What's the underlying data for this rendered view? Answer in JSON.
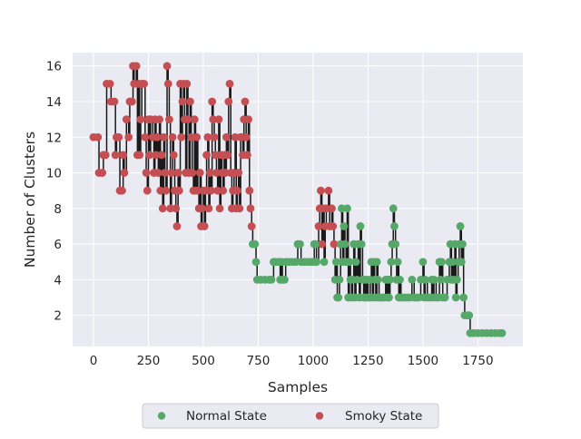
{
  "chart_data": {
    "type": "scatter",
    "xlabel": "Samples",
    "ylabel": "Number of Clusters",
    "xlim": [
      -95,
      1955
    ],
    "ylim": [
      0.25,
      16.75
    ],
    "xticks": [
      0,
      250,
      500,
      750,
      1000,
      1250,
      1500,
      1750
    ],
    "xtick_labels": [
      "0",
      "250",
      "500",
      "750",
      "1000",
      "1250",
      "1500",
      "1750"
    ],
    "yticks": [
      2,
      4,
      6,
      8,
      10,
      12,
      14,
      16
    ],
    "ytick_labels": [
      "2",
      "4",
      "6",
      "8",
      "10",
      "12",
      "14",
      "16"
    ],
    "grid": true,
    "legend_position": "bottom-center",
    "line": {
      "color": "#1a1a1a",
      "description": "step line through all samples"
    },
    "series": [
      {
        "name": "Smoky State",
        "color": "#c44e52",
        "points": [
          [
            0,
            12
          ],
          [
            20,
            12
          ],
          [
            25,
            10
          ],
          [
            40,
            10
          ],
          [
            45,
            11
          ],
          [
            55,
            11
          ],
          [
            60,
            15
          ],
          [
            75,
            15
          ],
          [
            80,
            14
          ],
          [
            95,
            14
          ],
          [
            100,
            11
          ],
          [
            105,
            12
          ],
          [
            115,
            12
          ],
          [
            120,
            9
          ],
          [
            130,
            9
          ],
          [
            135,
            11
          ],
          [
            140,
            10
          ],
          [
            150,
            13
          ],
          [
            160,
            12
          ],
          [
            165,
            14
          ],
          [
            175,
            14
          ],
          [
            180,
            16
          ],
          [
            185,
            15
          ],
          [
            195,
            16
          ],
          [
            200,
            11
          ],
          [
            205,
            15
          ],
          [
            210,
            11
          ],
          [
            215,
            13
          ],
          [
            220,
            15
          ],
          [
            230,
            15
          ],
          [
            235,
            12
          ],
          [
            240,
            10
          ],
          [
            245,
            9
          ],
          [
            250,
            13
          ],
          [
            255,
            11
          ],
          [
            260,
            13
          ],
          [
            270,
            12
          ],
          [
            275,
            10
          ],
          [
            280,
            13
          ],
          [
            285,
            11
          ],
          [
            290,
            12
          ],
          [
            295,
            10
          ],
          [
            300,
            13
          ],
          [
            305,
            9
          ],
          [
            310,
            11
          ],
          [
            315,
            8
          ],
          [
            320,
            12
          ],
          [
            325,
            10
          ],
          [
            330,
            9
          ],
          [
            335,
            16
          ],
          [
            340,
            15
          ],
          [
            345,
            13
          ],
          [
            350,
            8
          ],
          [
            355,
            10
          ],
          [
            360,
            12
          ],
          [
            365,
            11
          ],
          [
            370,
            9
          ],
          [
            375,
            8
          ],
          [
            380,
            7
          ],
          [
            385,
            10
          ],
          [
            390,
            9
          ],
          [
            395,
            15
          ],
          [
            400,
            12
          ],
          [
            405,
            14
          ],
          [
            410,
            15
          ],
          [
            415,
            13
          ],
          [
            420,
            10
          ],
          [
            425,
            15
          ],
          [
            430,
            13
          ],
          [
            435,
            10
          ],
          [
            440,
            14
          ],
          [
            445,
            12
          ],
          [
            450,
            10
          ],
          [
            455,
            9
          ],
          [
            460,
            13
          ],
          [
            465,
            9
          ],
          [
            470,
            12
          ],
          [
            475,
            9
          ],
          [
            480,
            8
          ],
          [
            485,
            10
          ],
          [
            490,
            7
          ],
          [
            495,
            8
          ],
          [
            500,
            9
          ],
          [
            505,
            7
          ],
          [
            510,
            9
          ],
          [
            515,
            11
          ],
          [
            520,
            12
          ],
          [
            525,
            8
          ],
          [
            530,
            10
          ],
          [
            535,
            9
          ],
          [
            540,
            14
          ],
          [
            545,
            13
          ],
          [
            550,
            12
          ],
          [
            555,
            11
          ],
          [
            560,
            10
          ],
          [
            565,
            9
          ],
          [
            570,
            13
          ],
          [
            575,
            8
          ],
          [
            580,
            11
          ],
          [
            585,
            10
          ],
          [
            590,
            9
          ],
          [
            595,
            11
          ],
          [
            600,
            10
          ],
          [
            605,
            12
          ],
          [
            610,
            11
          ],
          [
            615,
            14
          ],
          [
            620,
            15
          ],
          [
            625,
            10
          ],
          [
            630,
            8
          ],
          [
            635,
            9
          ],
          [
            640,
            10
          ],
          [
            645,
            12
          ],
          [
            650,
            8
          ],
          [
            655,
            9
          ],
          [
            660,
            10
          ],
          [
            665,
            8
          ],
          [
            670,
            12
          ],
          [
            675,
            12
          ],
          [
            680,
            11
          ],
          [
            685,
            13
          ],
          [
            690,
            14
          ],
          [
            695,
            12
          ],
          [
            700,
            11
          ],
          [
            705,
            13
          ],
          [
            710,
            9
          ],
          [
            715,
            8
          ],
          [
            720,
            7
          ],
          [
            1025,
            7
          ],
          [
            1030,
            8
          ],
          [
            1035,
            9
          ],
          [
            1040,
            6
          ],
          [
            1045,
            8
          ],
          [
            1055,
            7
          ],
          [
            1060,
            8
          ],
          [
            1070,
            9
          ],
          [
            1075,
            7
          ],
          [
            1085,
            8
          ],
          [
            1090,
            7
          ],
          [
            1095,
            6
          ]
        ]
      },
      {
        "name": "Normal State",
        "color": "#55a868",
        "points": [
          [
            725,
            6
          ],
          [
            735,
            6
          ],
          [
            740,
            5
          ],
          [
            745,
            4
          ],
          [
            760,
            4
          ],
          [
            780,
            4
          ],
          [
            800,
            4
          ],
          [
            810,
            4
          ],
          [
            820,
            5
          ],
          [
            830,
            5
          ],
          [
            845,
            5
          ],
          [
            850,
            4
          ],
          [
            855,
            5
          ],
          [
            860,
            4
          ],
          [
            870,
            4
          ],
          [
            875,
            5
          ],
          [
            890,
            5
          ],
          [
            905,
            5
          ],
          [
            920,
            5
          ],
          [
            930,
            6
          ],
          [
            940,
            6
          ],
          [
            945,
            5
          ],
          [
            960,
            5
          ],
          [
            975,
            5
          ],
          [
            990,
            5
          ],
          [
            1000,
            5
          ],
          [
            1005,
            6
          ],
          [
            1010,
            6
          ],
          [
            1015,
            5
          ],
          [
            1050,
            5
          ],
          [
            1100,
            4
          ],
          [
            1105,
            5
          ],
          [
            1110,
            3
          ],
          [
            1115,
            3
          ],
          [
            1120,
            4
          ],
          [
            1125,
            6
          ],
          [
            1130,
            8
          ],
          [
            1135,
            5
          ],
          [
            1140,
            7
          ],
          [
            1145,
            6
          ],
          [
            1150,
            5
          ],
          [
            1155,
            8
          ],
          [
            1160,
            3
          ],
          [
            1165,
            5
          ],
          [
            1170,
            4
          ],
          [
            1175,
            3
          ],
          [
            1180,
            4
          ],
          [
            1185,
            6
          ],
          [
            1190,
            3
          ],
          [
            1195,
            5
          ],
          [
            1200,
            4
          ],
          [
            1205,
            6
          ],
          [
            1210,
            3
          ],
          [
            1215,
            7
          ],
          [
            1220,
            6
          ],
          [
            1225,
            4
          ],
          [
            1230,
            3
          ],
          [
            1235,
            4
          ],
          [
            1240,
            3
          ],
          [
            1245,
            4
          ],
          [
            1250,
            3
          ],
          [
            1255,
            3
          ],
          [
            1260,
            4
          ],
          [
            1265,
            5
          ],
          [
            1270,
            3
          ],
          [
            1275,
            5
          ],
          [
            1280,
            4
          ],
          [
            1285,
            3
          ],
          [
            1290,
            5
          ],
          [
            1295,
            4
          ],
          [
            1300,
            3
          ],
          [
            1305,
            3
          ],
          [
            1310,
            3
          ],
          [
            1320,
            3
          ],
          [
            1330,
            4
          ],
          [
            1335,
            3
          ],
          [
            1340,
            4
          ],
          [
            1345,
            3
          ],
          [
            1350,
            4
          ],
          [
            1355,
            5
          ],
          [
            1360,
            6
          ],
          [
            1365,
            8
          ],
          [
            1370,
            7
          ],
          [
            1375,
            6
          ],
          [
            1380,
            4
          ],
          [
            1385,
            5
          ],
          [
            1390,
            3
          ],
          [
            1395,
            4
          ],
          [
            1400,
            3
          ],
          [
            1410,
            3
          ],
          [
            1420,
            3
          ],
          [
            1430,
            3
          ],
          [
            1440,
            3
          ],
          [
            1450,
            4
          ],
          [
            1460,
            3
          ],
          [
            1470,
            3
          ],
          [
            1480,
            3
          ],
          [
            1490,
            4
          ],
          [
            1500,
            5
          ],
          [
            1505,
            3
          ],
          [
            1510,
            4
          ],
          [
            1520,
            3
          ],
          [
            1530,
            3
          ],
          [
            1540,
            4
          ],
          [
            1545,
            3
          ],
          [
            1550,
            4
          ],
          [
            1560,
            3
          ],
          [
            1570,
            3
          ],
          [
            1575,
            5
          ],
          [
            1580,
            4
          ],
          [
            1585,
            5
          ],
          [
            1590,
            3
          ],
          [
            1600,
            3
          ],
          [
            1610,
            4
          ],
          [
            1620,
            5
          ],
          [
            1625,
            6
          ],
          [
            1630,
            4
          ],
          [
            1635,
            5
          ],
          [
            1640,
            4
          ],
          [
            1645,
            6
          ],
          [
            1650,
            3
          ],
          [
            1655,
            4
          ],
          [
            1660,
            5
          ],
          [
            1665,
            6
          ],
          [
            1670,
            7
          ],
          [
            1675,
            5
          ],
          [
            1680,
            6
          ],
          [
            1685,
            3
          ],
          [
            1690,
            2
          ],
          [
            1700,
            2
          ],
          [
            1710,
            2
          ],
          [
            1715,
            1
          ],
          [
            1730,
            1
          ],
          [
            1750,
            1
          ],
          [
            1770,
            1
          ],
          [
            1790,
            1
          ],
          [
            1810,
            1
          ],
          [
            1830,
            1
          ],
          [
            1850,
            1
          ],
          [
            1860,
            1
          ]
        ]
      }
    ]
  }
}
